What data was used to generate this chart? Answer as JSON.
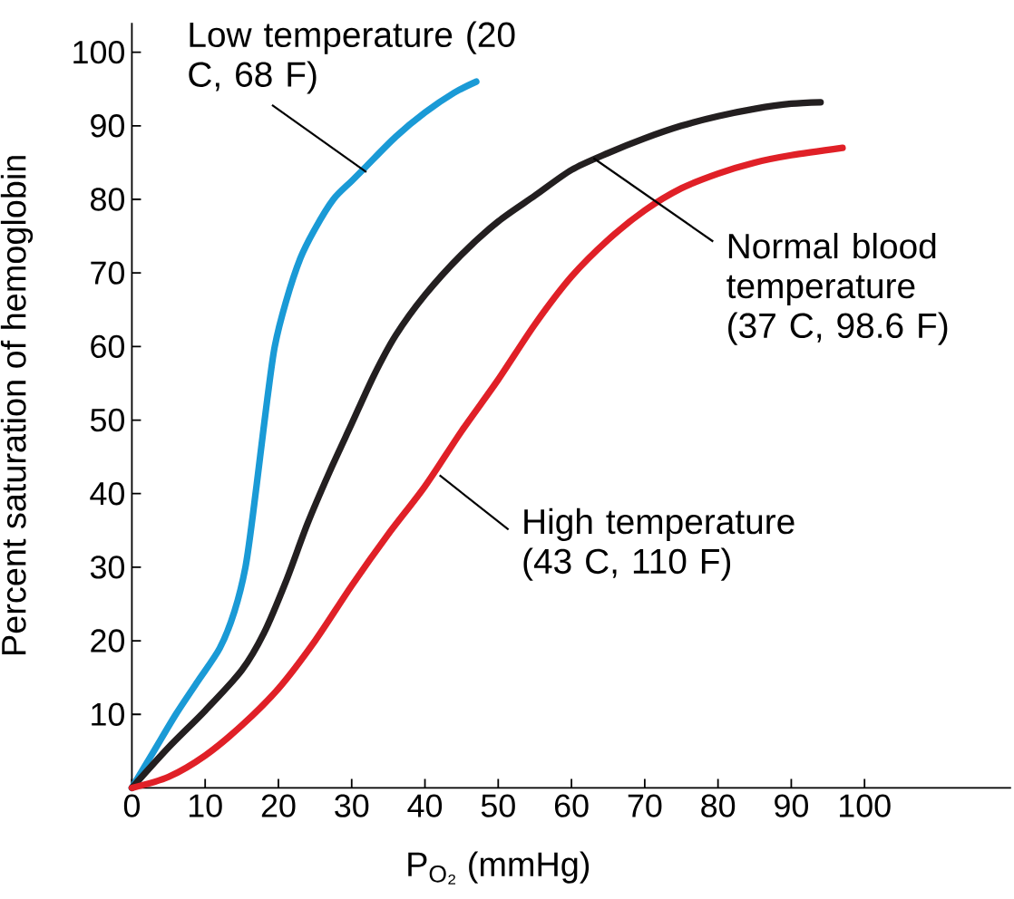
{
  "chart_data": {
    "type": "line",
    "xlabel": "P$_{O₂}$ (mmHg)",
    "ylabel": "Percent saturation of hemoglobin",
    "xlim": [
      0,
      120
    ],
    "ylim": [
      0,
      104
    ],
    "xticks": [
      0,
      10,
      20,
      30,
      40,
      50,
      60,
      70,
      80,
      90,
      100
    ],
    "yticks": [
      10,
      20,
      30,
      40,
      50,
      60,
      70,
      80,
      90,
      100
    ],
    "series": [
      {
        "color": "#1a9ad6",
        "x": [
          0,
          3,
          6,
          9,
          12,
          14,
          15.5,
          16.5,
          17.5,
          18.5,
          19.5,
          21,
          23,
          25,
          27.5,
          30,
          32,
          36,
          40,
          44,
          47
        ],
        "values": [
          0,
          5,
          10,
          14.5,
          19,
          24,
          30,
          37,
          45,
          53,
          60,
          66,
          72,
          76,
          80,
          82.5,
          84.5,
          88.5,
          91.8,
          94.5,
          96
        ]
      },
      {
        "color": "#231f20",
        "x": [
          0,
          5,
          10,
          15,
          18,
          21,
          24,
          27,
          30,
          33,
          36,
          40,
          45,
          50,
          55,
          60,
          65,
          70,
          75,
          80,
          85,
          90,
          94
        ],
        "values": [
          0,
          5.5,
          10.5,
          16,
          21,
          28,
          36,
          43,
          49.5,
          56,
          61.5,
          67,
          72.5,
          77,
          80.5,
          84,
          86.3,
          88.3,
          90,
          91.3,
          92.3,
          93,
          93.2
        ]
      },
      {
        "color": "#e02027",
        "x": [
          0,
          5,
          10,
          15,
          20,
          25,
          30,
          35,
          40,
          45,
          50,
          55,
          60,
          65,
          70,
          75,
          80,
          85,
          90,
          97
        ],
        "values": [
          0,
          1.5,
          4.4,
          8.5,
          13.5,
          20,
          27.5,
          34.5,
          41,
          48.5,
          55.5,
          63,
          69.5,
          74.5,
          78.5,
          81.5,
          83.5,
          85,
          86,
          87
        ]
      }
    ],
    "annotations": [
      {
        "text": "Low temperature (20 C, 68 F)",
        "x": 32,
        "y": 83.7
      },
      {
        "text": "Normal blood temperature (37 C, 98.6 F)",
        "x": 63,
        "y": 85.6
      },
      {
        "text": "High temperature (43 C, 110 F)",
        "x": 42,
        "y": 42.5
      }
    ]
  }
}
